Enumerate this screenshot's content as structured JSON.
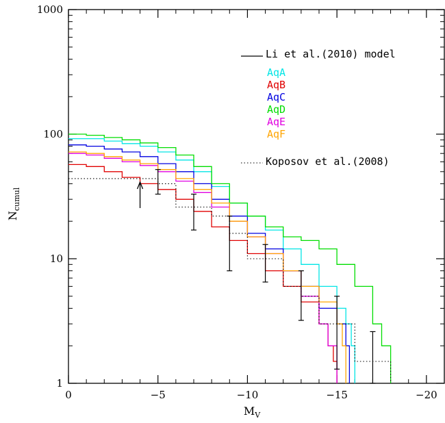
{
  "chart_data": {
    "type": "line",
    "xlabel": "M",
    "xlabel_sub": "V",
    "ylabel": "N",
    "ylabel_sub": "cumul",
    "xlim": [
      0,
      -21
    ],
    "ylim": [
      1,
      1000
    ],
    "yscale": "log",
    "x_ticks": [
      {
        "value": 0,
        "label": "0"
      },
      {
        "value": -5,
        "label": "−5"
      },
      {
        "value": -10,
        "label": "−10"
      },
      {
        "value": -15,
        "label": "−15"
      },
      {
        "value": -20,
        "label": "−20"
      }
    ],
    "y_ticks": [
      {
        "value": 1,
        "label": "1"
      },
      {
        "value": 10,
        "label": "10"
      },
      {
        "value": 100,
        "label": "100"
      },
      {
        "value": 1000,
        "label": "1000"
      }
    ],
    "grid": false,
    "legend_placement": "top-right",
    "model_label": "Li et al.(2010) model",
    "series": [
      {
        "name": "AqA",
        "color": "#00e5e5",
        "x": [
          0,
          -1,
          -2,
          -3,
          -4,
          -5,
          -6,
          -7,
          -8,
          -9,
          -10,
          -11,
          -12,
          -13,
          -14,
          -15,
          -15.5,
          -15.8,
          -16
        ],
        "y": [
          92,
          92,
          88,
          84,
          80,
          72,
          62,
          50,
          38,
          28,
          22,
          17,
          12,
          9,
          6,
          4,
          3,
          2,
          1
        ]
      },
      {
        "name": "AqB",
        "color": "#e00000",
        "x": [
          0,
          -1,
          -2,
          -3,
          -4,
          -5,
          -6,
          -7,
          -8,
          -9,
          -10,
          -11,
          -12,
          -13,
          -14,
          -14.5,
          -14.8,
          -15
        ],
        "y": [
          57,
          55,
          50,
          45,
          40,
          36,
          30,
          24,
          18,
          14,
          11,
          8,
          6,
          4.5,
          3,
          2,
          1.5,
          1
        ]
      },
      {
        "name": "AqC",
        "color": "#0000e0",
        "x": [
          0,
          -1,
          -2,
          -3,
          -4,
          -5,
          -6,
          -7,
          -8,
          -9,
          -10,
          -11,
          -12,
          -13,
          -14,
          -15,
          -15.5,
          -15.7
        ],
        "y": [
          82,
          80,
          76,
          72,
          66,
          58,
          50,
          40,
          30,
          22,
          16,
          12,
          8,
          6,
          4,
          3,
          2,
          1
        ]
      },
      {
        "name": "AqD",
        "color": "#00dd00",
        "x": [
          0,
          -1,
          -2,
          -3,
          -4,
          -5,
          -6,
          -7,
          -8,
          -9,
          -10,
          -11,
          -12,
          -13,
          -14,
          -15,
          -16,
          -17,
          -17.5,
          -18
        ],
        "y": [
          100,
          98,
          94,
          90,
          85,
          78,
          68,
          55,
          40,
          28,
          22,
          18,
          15,
          14,
          12,
          9,
          6,
          3,
          2,
          1
        ]
      },
      {
        "name": "AqE",
        "color": "#e000e0",
        "x": [
          0,
          -1,
          -2,
          -3,
          -4,
          -5,
          -6,
          -7,
          -8,
          -9,
          -10,
          -11,
          -12,
          -13,
          -14,
          -14.5,
          -15
        ],
        "y": [
          70,
          68,
          64,
          60,
          56,
          50,
          42,
          34,
          26,
          20,
          15,
          11,
          8,
          5,
          3,
          2,
          1
        ]
      },
      {
        "name": "AqF",
        "color": "#ffa500",
        "x": [
          0,
          -1,
          -2,
          -3,
          -4,
          -5,
          -6,
          -7,
          -8,
          -9,
          -10,
          -11,
          -12,
          -13,
          -14,
          -15,
          -15.3,
          -15.5
        ],
        "y": [
          72,
          70,
          66,
          62,
          58,
          52,
          44,
          36,
          28,
          20,
          15,
          11,
          8,
          6,
          4.5,
          3,
          2,
          1
        ]
      }
    ],
    "observations": {
      "name": "Koposov et al.(2008)",
      "x": [
        0,
        -4,
        -5,
        -6,
        -7,
        -8,
        -9,
        -10,
        -11,
        -12,
        -13,
        -14,
        -15,
        -16,
        -18
      ],
      "y": [
        44,
        44,
        40,
        26,
        26,
        22,
        16,
        10,
        10,
        6,
        5,
        3,
        3,
        1.5,
        1
      ],
      "errorbars": [
        {
          "x": -5,
          "lo": 33,
          "hi": 52
        },
        {
          "x": -7,
          "lo": 17,
          "hi": 33
        },
        {
          "x": -9,
          "lo": 8,
          "hi": 22
        },
        {
          "x": -11,
          "lo": 6.5,
          "hi": 13
        },
        {
          "x": -13,
          "lo": 3.2,
          "hi": 8
        },
        {
          "x": -15,
          "lo": 1.3,
          "hi": 5
        },
        {
          "x": -17,
          "lo": 1,
          "hi": 2.6
        }
      ]
    },
    "arrow_x": -4
  }
}
